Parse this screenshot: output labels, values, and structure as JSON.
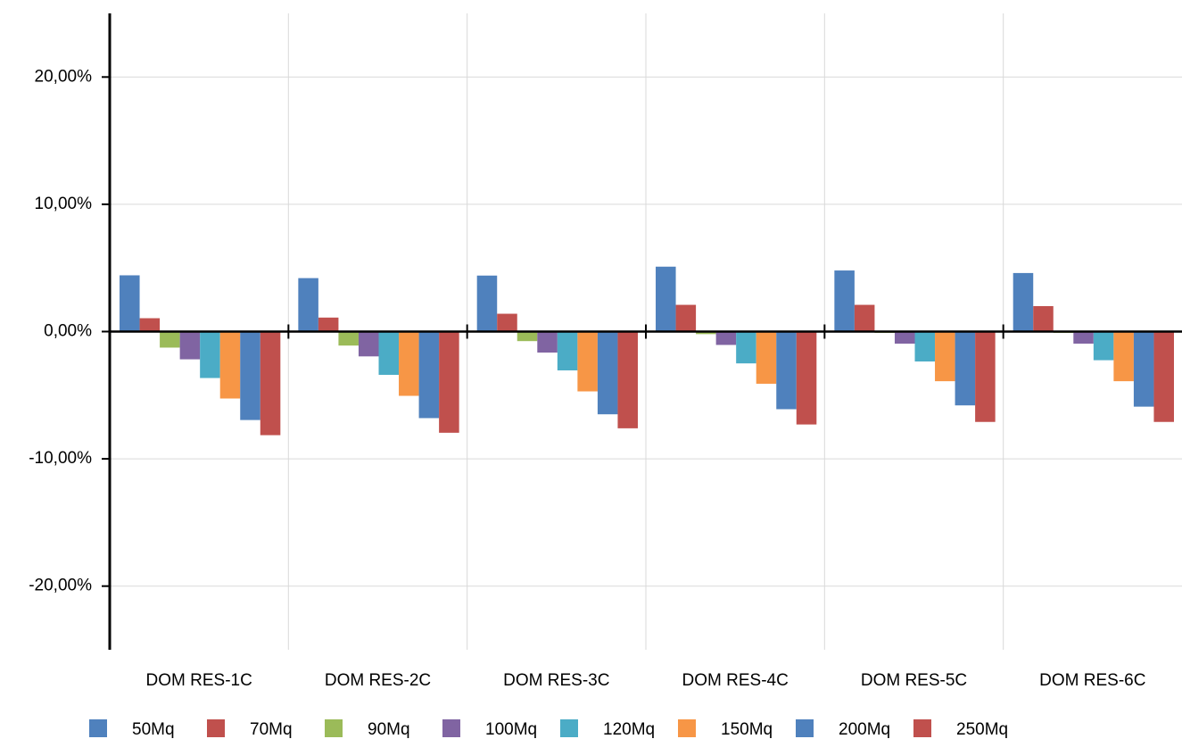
{
  "chart_data": {
    "type": "bar",
    "categories": [
      "DOM RES-1C",
      "DOM RES-2C",
      "DOM RES-3C",
      "DOM RES-4C",
      "DOM RES-5C",
      "DOM RES-6C"
    ],
    "series": [
      {
        "name": "50Mq",
        "color": "#4f81bd",
        "values": [
          4.42,
          4.2,
          4.4,
          5.1,
          4.8,
          4.6
        ]
      },
      {
        "name": "70Mq",
        "color": "#c0504d",
        "values": [
          1.05,
          1.1,
          1.4,
          2.1,
          2.1,
          2.0
        ]
      },
      {
        "name": "90Mq",
        "color": "#9bbb59",
        "values": [
          -1.26,
          -1.1,
          -0.75,
          -0.2,
          -0.1,
          -0.1
        ]
      },
      {
        "name": "100Mq",
        "color": "#8064a2",
        "values": [
          -2.18,
          -1.95,
          -1.65,
          -1.05,
          -0.95,
          -0.95
        ]
      },
      {
        "name": "120Mq",
        "color": "#4bacc6",
        "values": [
          -3.65,
          -3.4,
          -3.05,
          -2.5,
          -2.35,
          -2.25
        ]
      },
      {
        "name": "150Mq",
        "color": "#f79646",
        "values": [
          -5.26,
          -5.05,
          -4.7,
          -4.1,
          -3.9,
          -3.9
        ]
      },
      {
        "name": "200Mq",
        "color": "#4f81bd",
        "values": [
          -6.95,
          -6.8,
          -6.5,
          -6.1,
          -5.8,
          -5.9
        ]
      },
      {
        "name": "250Mq",
        "color": "#c0504d",
        "values": [
          -8.14,
          -7.95,
          -7.6,
          -7.3,
          -7.1,
          -7.1
        ]
      }
    ],
    "ylim": [
      -25,
      25
    ],
    "yticks": [
      {
        "value": -20,
        "label": "-20,00%"
      },
      {
        "value": -10,
        "label": "-10,00%"
      },
      {
        "value": 0,
        "label": "0,00%"
      },
      {
        "value": 10,
        "label": "10,00%"
      },
      {
        "value": 20,
        "label": "20,00%"
      }
    ],
    "grid": true
  }
}
